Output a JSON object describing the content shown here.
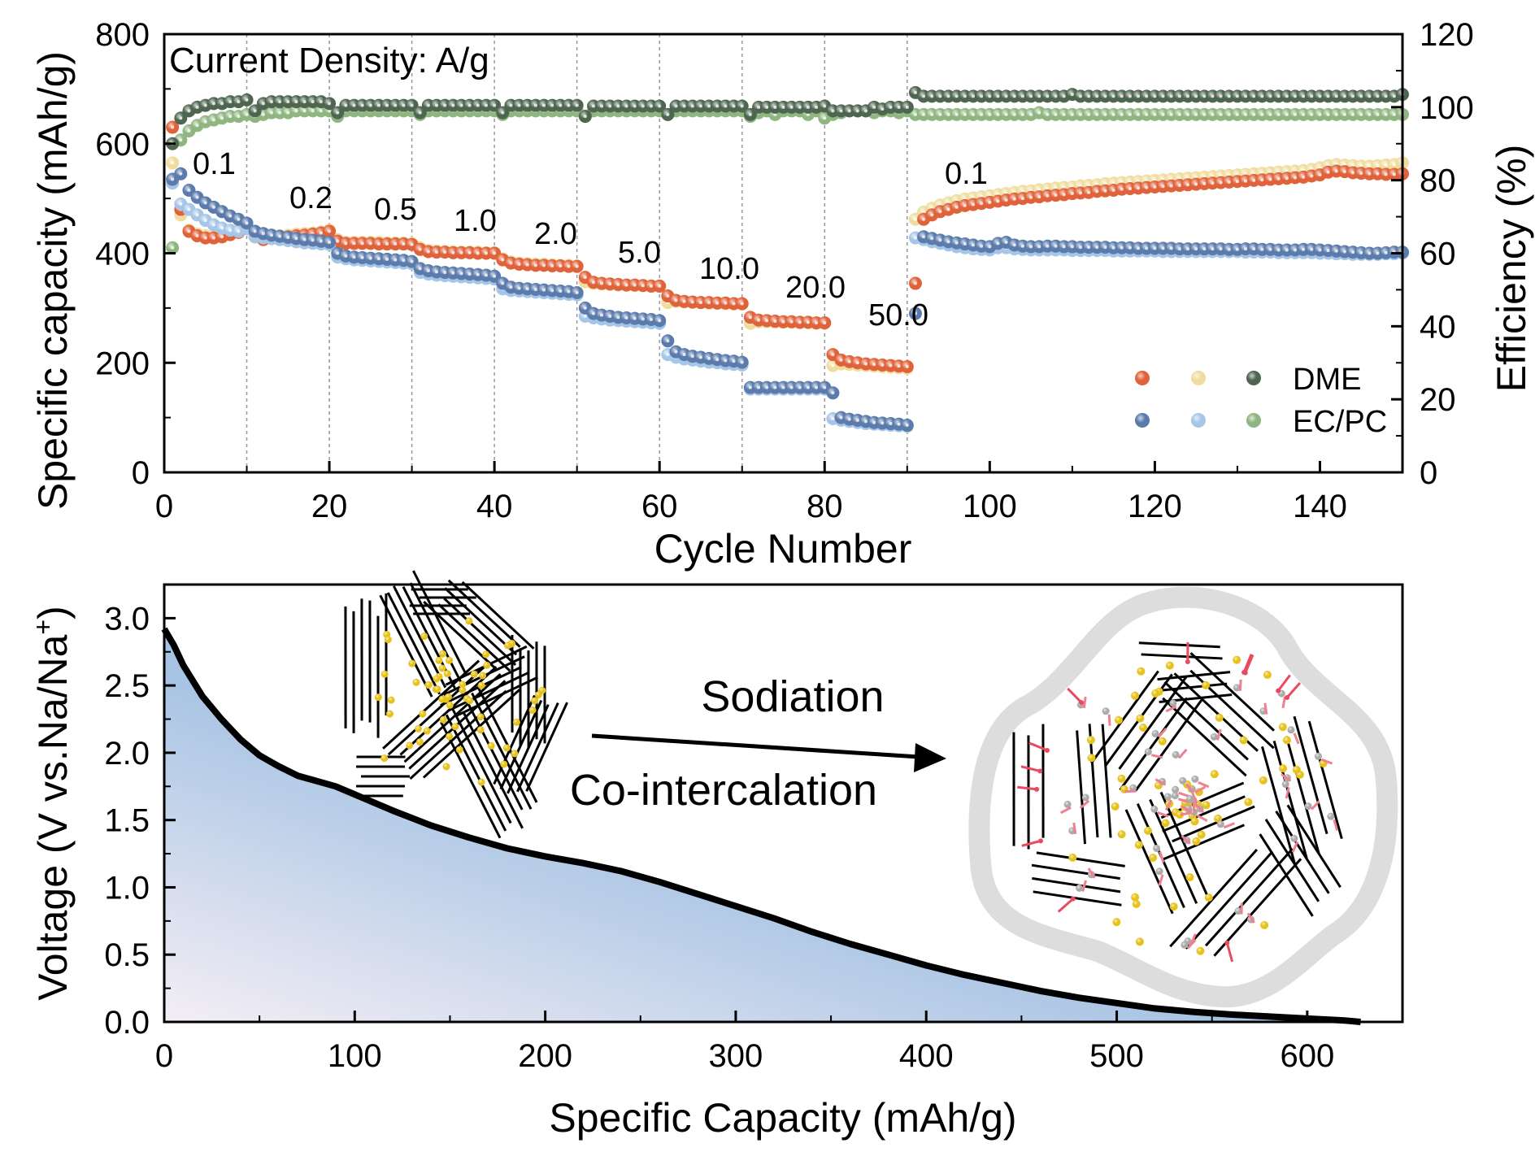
{
  "chart_data": [
    {
      "type": "scatter",
      "annotation_title": "Current Density:  A/g",
      "xlabel": "Cycle Number",
      "ylabel": "Specific capacity (mAh/g)",
      "y2label": "Efficiency (%)",
      "xlim": [
        0,
        150
      ],
      "ylim": [
        0,
        800
      ],
      "y2lim": [
        0,
        120
      ],
      "x_ticks": [
        "0",
        "20",
        "40",
        "60",
        "80",
        "100",
        "120",
        "140"
      ],
      "y_ticks": [
        "0",
        "200",
        "400",
        "600",
        "800"
      ],
      "y2_ticks": [
        "0",
        "20",
        "40",
        "60",
        "80",
        "100",
        "120"
      ],
      "grid": "dashed vertical lines every 10 cycles up to 90",
      "rate_labels": [
        "0.1",
        "0.2",
        "0.5",
        "1.0",
        "2.0",
        "5.0",
        "10.0",
        "20.0",
        "50.0",
        "0.1"
      ],
      "legend": {
        "placement": "bottom-right",
        "rows": [
          "DME",
          "EC/PC"
        ]
      },
      "colors": {
        "dme_capacity_dark": "#e0623a",
        "dme_capacity_light": "#f0dc9c",
        "dme_efficiency": "#4e6650",
        "ecpc_capacity_dark": "#5a7bab",
        "ecpc_capacity_light": "#a6c6e8",
        "ecpc_efficiency": "#8fb580"
      },
      "x_start": 1,
      "series": [
        {
          "electrolyte": "DME",
          "axis": "left",
          "color": "#f0dc9c",
          "values": [
            565,
            470,
            442,
            435,
            432,
            432,
            434,
            437,
            441,
            447,
            433,
            428,
            430,
            432,
            433,
            435,
            436,
            437,
            439,
            442,
            425,
            420,
            420,
            420,
            420,
            420,
            419,
            419,
            419,
            418,
            410,
            405,
            404,
            403,
            403,
            402,
            402,
            402,
            401,
            401,
            390,
            384,
            382,
            381,
            380,
            380,
            379,
            378,
            378,
            377,
            348,
            345,
            344,
            343,
            342,
            342,
            341,
            341,
            340,
            340,
            310,
            312,
            311,
            310,
            310,
            309,
            309,
            308,
            308,
            307,
            272,
            275,
            275,
            274,
            274,
            274,
            273,
            273,
            272,
            272,
            195,
            198,
            197,
            196,
            195,
            194,
            193,
            192,
            191,
            190,
            462,
            475,
            482,
            488,
            492,
            496,
            499,
            501,
            503,
            505,
            507,
            509,
            511,
            513,
            514,
            516,
            517,
            519,
            520,
            521,
            523,
            524,
            525,
            527,
            528,
            529,
            530,
            531,
            532,
            533,
            534,
            535,
            536,
            537,
            538,
            539,
            540,
            541,
            542,
            543,
            544,
            545,
            546,
            547,
            548,
            549,
            550,
            551,
            553,
            556,
            560,
            562,
            561,
            560,
            559,
            559,
            560,
            561,
            562,
            565
          ]
        },
        {
          "electrolyte": "DME",
          "axis": "left",
          "color": "#e0623a",
          "values": [
            630,
            480,
            440,
            432,
            428,
            428,
            430,
            434,
            438,
            445,
            430,
            425,
            427,
            429,
            430,
            432,
            433,
            435,
            437,
            440,
            422,
            418,
            418,
            418,
            418,
            417,
            417,
            417,
            417,
            416,
            407,
            403,
            402,
            402,
            401,
            401,
            401,
            400,
            400,
            400,
            388,
            382,
            380,
            379,
            378,
            378,
            377,
            377,
            376,
            376,
            356,
            347,
            345,
            344,
            343,
            342,
            342,
            341,
            340,
            340,
            322,
            314,
            312,
            311,
            310,
            310,
            309,
            309,
            308,
            308,
            283,
            278,
            277,
            276,
            275,
            275,
            274,
            274,
            273,
            273,
            215,
            205,
            202,
            200,
            198,
            197,
            196,
            195,
            194,
            193,
            345,
            462,
            470,
            476,
            480,
            484,
            487,
            489,
            491,
            493,
            495,
            497,
            499,
            500,
            502,
            503,
            505,
            506,
            507,
            509,
            510,
            511,
            513,
            514,
            515,
            517,
            518,
            519,
            520,
            521,
            522,
            523,
            524,
            525,
            526,
            527,
            528,
            529,
            530,
            531,
            532,
            533,
            534,
            535,
            536,
            537,
            538,
            539,
            541,
            543,
            548,
            550,
            549,
            547,
            546,
            545,
            545,
            544,
            544,
            545
          ]
        },
        {
          "electrolyte": "EC/PC",
          "axis": "left",
          "color": "#a6c6e8",
          "values": [
            528,
            490,
            480,
            470,
            460,
            452,
            446,
            442,
            440,
            445,
            430,
            428,
            427,
            425,
            423,
            421,
            419,
            418,
            417,
            416,
            393,
            390,
            388,
            387,
            386,
            385,
            384,
            383,
            382,
            381,
            365,
            362,
            360,
            359,
            358,
            357,
            356,
            355,
            354,
            353,
            335,
            332,
            331,
            330,
            329,
            328,
            327,
            326,
            325,
            324,
            285,
            282,
            280,
            278,
            277,
            276,
            275,
            274,
            273,
            272,
            215,
            210,
            207,
            205,
            203,
            201,
            200,
            198,
            197,
            196,
            152,
            152,
            152,
            152,
            152,
            152,
            152,
            152,
            152,
            152,
            98,
            95,
            93,
            91,
            89,
            88,
            87,
            86,
            85,
            84,
            428,
            425,
            421,
            418,
            415,
            412,
            410,
            408,
            407,
            406,
            410,
            410,
            408,
            407,
            406,
            406,
            406,
            406,
            406,
            405,
            405,
            405,
            405,
            405,
            404,
            404,
            404,
            404,
            404,
            404,
            403,
            403,
            403,
            403,
            403,
            403,
            403,
            403,
            403,
            403,
            402,
            402,
            402,
            402,
            401,
            401,
            401,
            401,
            401,
            400,
            400,
            399,
            399,
            398,
            398,
            398,
            398,
            399,
            399,
            400
          ]
        },
        {
          "electrolyte": "EC/PC",
          "axis": "left",
          "color": "#5a7bab",
          "values": [
            535,
            545,
            515,
            502,
            492,
            484,
            476,
            468,
            462,
            455,
            440,
            436,
            433,
            431,
            429,
            427,
            425,
            424,
            422,
            420,
            400,
            395,
            393,
            392,
            391,
            390,
            389,
            388,
            387,
            385,
            372,
            368,
            366,
            365,
            364,
            363,
            362,
            361,
            360,
            358,
            345,
            338,
            336,
            335,
            334,
            333,
            332,
            331,
            330,
            328,
            300,
            290,
            287,
            285,
            283,
            282,
            281,
            280,
            279,
            277,
            240,
            220,
            215,
            212,
            210,
            208,
            206,
            204,
            203,
            201,
            155,
            155,
            155,
            155,
            155,
            155,
            155,
            155,
            155,
            155,
            145,
            100,
            97,
            95,
            93,
            91,
            90,
            89,
            88,
            86,
            290,
            430,
            427,
            424,
            421,
            419,
            417,
            415,
            413,
            412,
            418,
            420,
            415,
            413,
            412,
            412,
            413,
            413,
            412,
            412,
            411,
            411,
            411,
            411,
            410,
            410,
            410,
            409,
            409,
            409,
            409,
            409,
            408,
            408,
            408,
            408,
            408,
            408,
            407,
            407,
            408,
            408,
            407,
            407,
            406,
            406,
            406,
            407,
            407,
            406,
            405,
            404,
            403,
            402,
            401,
            400,
            400,
            401,
            402,
            402
          ]
        },
        {
          "electrolyte": "EC/PC",
          "axis": "right",
          "color": "#8fb580",
          "values": [
            61.5,
            91,
            93.5,
            95,
            96,
            96.5,
            97,
            97.5,
            97.5,
            98,
            97.5,
            98,
            98.5,
            98.5,
            98.5,
            99,
            99,
            99,
            99,
            99,
            97.5,
            99,
            99,
            99,
            99,
            99,
            99,
            99,
            99,
            99,
            98,
            99,
            99,
            99,
            99,
            99,
            99,
            99,
            99,
            99,
            98,
            99,
            99,
            99,
            99,
            99,
            99,
            99,
            99,
            99,
            97.5,
            99,
            99,
            99,
            99,
            99,
            99,
            99,
            99,
            99,
            98,
            99,
            99,
            99,
            99,
            99,
            99,
            99,
            99,
            99,
            97.5,
            98.5,
            99,
            98,
            99,
            99,
            99,
            98,
            99,
            97,
            98,
            98.5,
            99,
            99,
            99,
            98.5,
            99,
            99,
            98.5,
            99,
            98,
            98,
            98,
            98,
            98,
            98,
            98,
            98,
            98,
            98,
            98,
            98,
            98,
            98,
            98,
            98.5,
            98,
            98,
            98,
            98,
            98,
            98,
            98,
            98,
            98,
            98,
            98,
            98,
            98,
            98,
            98,
            98,
            98,
            98,
            98,
            98,
            98,
            98,
            98,
            98,
            98,
            98,
            98,
            98,
            98,
            98,
            98,
            98,
            98,
            98,
            98,
            98,
            98,
            98,
            98,
            98,
            98,
            98,
            98,
            98
          ]
        },
        {
          "electrolyte": "DME",
          "axis": "right",
          "color": "#4e6650",
          "values": [
            90,
            97,
            99,
            100,
            100.5,
            101,
            101,
            101.5,
            101.5,
            102,
            99,
            101,
            101.5,
            101.5,
            101.5,
            101.5,
            101.5,
            101.5,
            101.5,
            101,
            98.5,
            100.5,
            100.5,
            100.5,
            100.5,
            100.5,
            100.5,
            100.5,
            100.5,
            100.5,
            98.5,
            100.5,
            100.5,
            100.5,
            100.5,
            100.5,
            100.5,
            100.5,
            100.5,
            100.5,
            98.5,
            100.5,
            100.5,
            100.5,
            100.5,
            100.5,
            100.5,
            100.5,
            100.5,
            100.5,
            97.5,
            100.3,
            100.3,
            100.3,
            100.3,
            100.3,
            100.3,
            100.3,
            100.3,
            100.3,
            98,
            100.3,
            100.3,
            100.3,
            100.3,
            100.3,
            100.3,
            100.3,
            100.3,
            100.3,
            98,
            100,
            100,
            100,
            100,
            100,
            100,
            100,
            100,
            100.3,
            99,
            99,
            99,
            99,
            99,
            100,
            99.5,
            100,
            100,
            100,
            104,
            103,
            103,
            103,
            103,
            103,
            103,
            103,
            103,
            103,
            103,
            103,
            103,
            103,
            103,
            103,
            103,
            103,
            103,
            103.5,
            103,
            103,
            103,
            103,
            103,
            103,
            103,
            103,
            103,
            103,
            103,
            103,
            103,
            103,
            103,
            103,
            103,
            103,
            103,
            103,
            103,
            103,
            103,
            103,
            103,
            103,
            103,
            103,
            103,
            103,
            103,
            103,
            103,
            103,
            103,
            103,
            103,
            103,
            103,
            103.5
          ]
        }
      ]
    },
    {
      "type": "area",
      "xlabel": "Specific Capacity (mAh/g)",
      "ylabel": "Voltage (V vs.Na/Na",
      "ylabel_sup": "+",
      "ylabel_end": ")",
      "xlim": [
        0,
        650
      ],
      "ylim": [
        0,
        3.25
      ],
      "x_ticks": [
        "0",
        "100",
        "200",
        "300",
        "400",
        "500",
        "600"
      ],
      "y_ticks": [
        "0.0",
        "0.5",
        "1.0",
        "1.5",
        "2.0",
        "2.5",
        "3.0"
      ],
      "fill_colors": [
        "#a8c4e4",
        "#f4eef5"
      ],
      "line_color": "#000000",
      "series": [
        {
          "x": [
            0,
            5,
            10,
            20,
            30,
            40,
            50,
            60,
            70,
            80,
            90,
            100,
            120,
            140,
            160,
            180,
            200,
            220,
            240,
            260,
            280,
            300,
            320,
            340,
            360,
            380,
            400,
            420,
            440,
            460,
            480,
            500,
            520,
            540,
            560,
            580,
            600,
            620,
            628
          ],
          "y": [
            2.92,
            2.8,
            2.65,
            2.42,
            2.25,
            2.1,
            1.98,
            1.9,
            1.83,
            1.79,
            1.75,
            1.69,
            1.57,
            1.46,
            1.37,
            1.29,
            1.23,
            1.18,
            1.12,
            1.04,
            0.95,
            0.86,
            0.77,
            0.67,
            0.58,
            0.5,
            0.42,
            0.35,
            0.29,
            0.23,
            0.18,
            0.14,
            0.1,
            0.075,
            0.055,
            0.04,
            0.025,
            0.01,
            0.0
          ]
        }
      ],
      "illustration": {
        "label_top": "Sodiation",
        "label_bottom": "Co-intercalation"
      }
    }
  ]
}
